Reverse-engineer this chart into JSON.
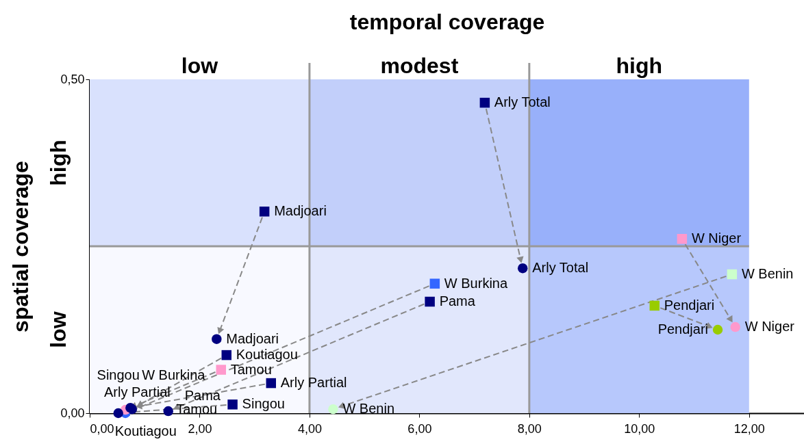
{
  "chart_data": {
    "type": "scatter",
    "xlabel": "temporal coverage",
    "ylabel": "spatial coverage",
    "xlim": [
      0,
      13
    ],
    "xticks": [
      {
        "value": 0,
        "label": "0,00"
      },
      {
        "value": 2,
        "label": "2,00"
      },
      {
        "value": 4,
        "label": "4,00"
      },
      {
        "value": 6,
        "label": "6,00"
      },
      {
        "value": 8,
        "label": "8,00"
      },
      {
        "value": 10,
        "label": "10,00"
      },
      {
        "value": 12,
        "label": "12,00"
      }
    ],
    "ylim": [
      0,
      0.5
    ],
    "yticks": [
      {
        "value": 0,
        "label": "0,00"
      },
      {
        "value": 0.5,
        "label": "0,50"
      }
    ],
    "bands": [
      {
        "axis": "x",
        "from": 0,
        "to": 4,
        "label": "low",
        "color": "#f7f8ff"
      },
      {
        "axis": "x",
        "from": 4,
        "to": 8,
        "label": "modest",
        "color": "#dce3fc"
      },
      {
        "axis": "x",
        "from": 8,
        "to": 12,
        "label": "high",
        "color": "#abbffc"
      },
      {
        "axis": "y",
        "from": 0,
        "to": 0.25,
        "label": "low",
        "color": "#ffffff"
      },
      {
        "axis": "y",
        "from": 0.25,
        "to": 0.5,
        "label": "high",
        "color": "#3060f0"
      }
    ],
    "series": [
      {
        "marker": "square",
        "x": [
          7.19,
          3.18,
          10.78,
          10.28,
          11.69,
          6.28,
          6.19,
          2.49,
          2.39,
          3.3,
          2.6
        ],
        "values": [
          0.465,
          0.302,
          0.261,
          0.161,
          0.208,
          0.194,
          0.167,
          0.087,
          0.065,
          0.045,
          0.013
        ],
        "colors": [
          "#000080",
          "#000080",
          "#ff99cc",
          "#99cc00",
          "#ccffcc",
          "#3366ff",
          "#000080",
          "#000080",
          "#ff99cc",
          "#000080",
          "#000080"
        ]
      },
      {
        "marker": "circle",
        "x": [
          7.88,
          2.31,
          11.75,
          11.43,
          4.43,
          0.65,
          1.43,
          0.77,
          0.65,
          0.74,
          0.52
        ],
        "values": [
          0.217,
          0.111,
          0.129,
          0.125,
          0.006,
          0.0,
          0.003,
          0.006,
          0.005,
          0.008,
          0.0
        ],
        "colors": [
          "#000080",
          "#000080",
          "#ff99cc",
          "#99cc00",
          "#ccffcc",
          "#3366ff",
          "#000080",
          "#000080",
          "#ff99cc",
          "#000080",
          "#000080"
        ]
      }
    ],
    "annotations": [
      {
        "text": "Arly Total",
        "x": 7.19,
        "y": 0.465
      },
      {
        "text": "Madjoari",
        "x": 3.18,
        "y": 0.302
      },
      {
        "text": "W Niger",
        "x": 10.78,
        "y": 0.261
      },
      {
        "text": "Pendjari",
        "x": 10.28,
        "y": 0.161
      },
      {
        "text": "W Benin",
        "x": 11.69,
        "y": 0.208
      },
      {
        "text": "W Burkina",
        "x": 6.28,
        "y": 0.194
      },
      {
        "text": "Pama",
        "x": 6.19,
        "y": 0.167
      },
      {
        "text": "Koutiagou",
        "x": 2.49,
        "y": 0.087
      },
      {
        "text": "Tamou",
        "x": 2.39,
        "y": 0.065
      },
      {
        "text": "Arly Partial",
        "x": 3.3,
        "y": 0.045
      },
      {
        "text": "Singou",
        "x": 2.6,
        "y": 0.013
      },
      {
        "text": "Arly Total",
        "x": 7.88,
        "y": 0.217
      },
      {
        "text": "Madjoari",
        "x": 2.31,
        "y": 0.111
      },
      {
        "text": "W Niger",
        "x": 11.75,
        "y": 0.129
      },
      {
        "text": "Pendjari",
        "x": 11.43,
        "y": 0.125
      },
      {
        "text": "W Benin",
        "x": 4.43,
        "y": 0.006
      },
      {
        "text": "W Burkina",
        "x": 0.65,
        "y": 0.0
      },
      {
        "text": "Pama",
        "x": 1.43,
        "y": 0.003
      },
      {
        "text": "Koutiagou",
        "x": 0.77,
        "y": 0.006
      },
      {
        "text": "Tamou",
        "x": 0.65,
        "y": 0.005
      },
      {
        "text": "Arly Partial",
        "x": 0.74,
        "y": 0.008
      },
      {
        "text": "Singou",
        "x": 0.52,
        "y": 0.0
      }
    ]
  }
}
